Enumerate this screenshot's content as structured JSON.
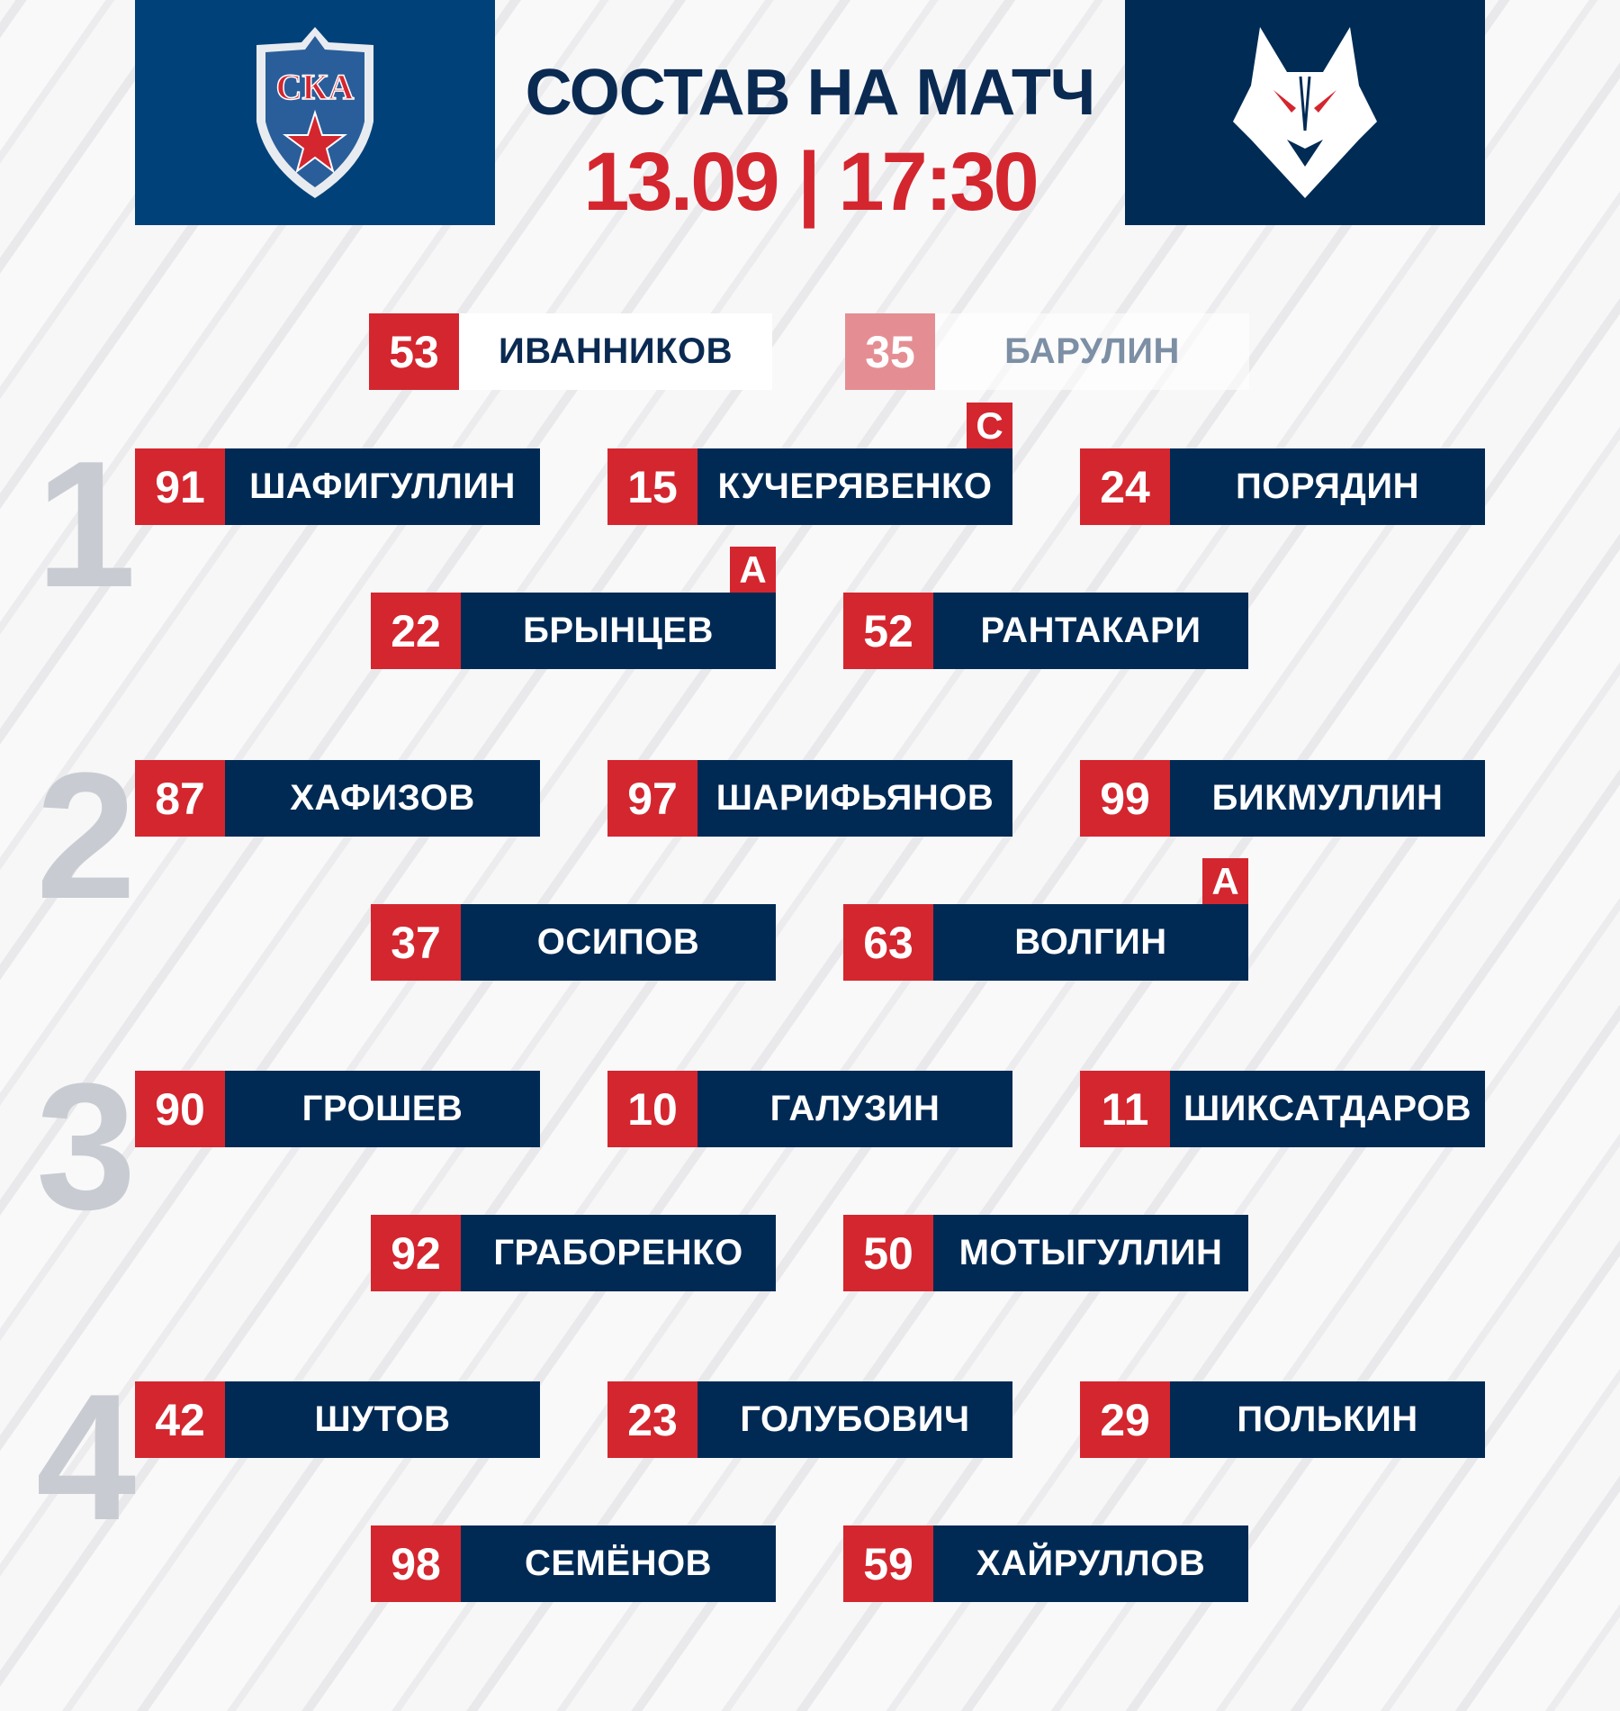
{
  "header": {
    "title": "СОСТАВ НА МАТЧ",
    "datetime": "13.09 | 17:30",
    "home_logo_text": "СКА"
  },
  "colors": {
    "red": "#d4262f",
    "navy": "#002a54",
    "home_bg": "#00417a",
    "away_bg": "#002b55"
  },
  "goalies": [
    {
      "number": "53",
      "name": "ИВАННИКОВ",
      "starting": true
    },
    {
      "number": "35",
      "name": "БАРУЛИН",
      "starting": false
    }
  ],
  "lines": [
    {
      "label": "1",
      "forwards": [
        {
          "number": "91",
          "name": "ШАФИГУЛЛИН"
        },
        {
          "number": "15",
          "name": "КУЧЕРЯВЕНКО",
          "badge": "С"
        },
        {
          "number": "24",
          "name": "ПОРЯДИН"
        }
      ],
      "defense": [
        {
          "number": "22",
          "name": "БРЫНЦЕВ",
          "badge": "А"
        },
        {
          "number": "52",
          "name": "РАНТАКАРИ"
        }
      ]
    },
    {
      "label": "2",
      "forwards": [
        {
          "number": "87",
          "name": "ХАФИЗОВ"
        },
        {
          "number": "97",
          "name": "ШАРИФЬЯНОВ"
        },
        {
          "number": "99",
          "name": "БИКМУЛЛИН"
        }
      ],
      "defense": [
        {
          "number": "37",
          "name": "ОСИПОВ"
        },
        {
          "number": "63",
          "name": "ВОЛГИН",
          "badge": "А"
        }
      ]
    },
    {
      "label": "3",
      "forwards": [
        {
          "number": "90",
          "name": "ГРОШЕВ"
        },
        {
          "number": "10",
          "name": "ГАЛУЗИН"
        },
        {
          "number": "11",
          "name": "ШИКСАТДАРОВ"
        }
      ],
      "defense": [
        {
          "number": "92",
          "name": "ГРАБОРЕНКО"
        },
        {
          "number": "50",
          "name": "МОТЫГУЛЛИН"
        }
      ]
    },
    {
      "label": "4",
      "forwards": [
        {
          "number": "42",
          "name": "ШУТОВ"
        },
        {
          "number": "23",
          "name": "ГОЛУБОВИЧ"
        },
        {
          "number": "29",
          "name": "ПОЛЬКИН"
        }
      ],
      "defense": [
        {
          "number": "98",
          "name": "СЕМЁНОВ"
        },
        {
          "number": "59",
          "name": "ХАЙРУЛЛОВ"
        }
      ]
    }
  ]
}
